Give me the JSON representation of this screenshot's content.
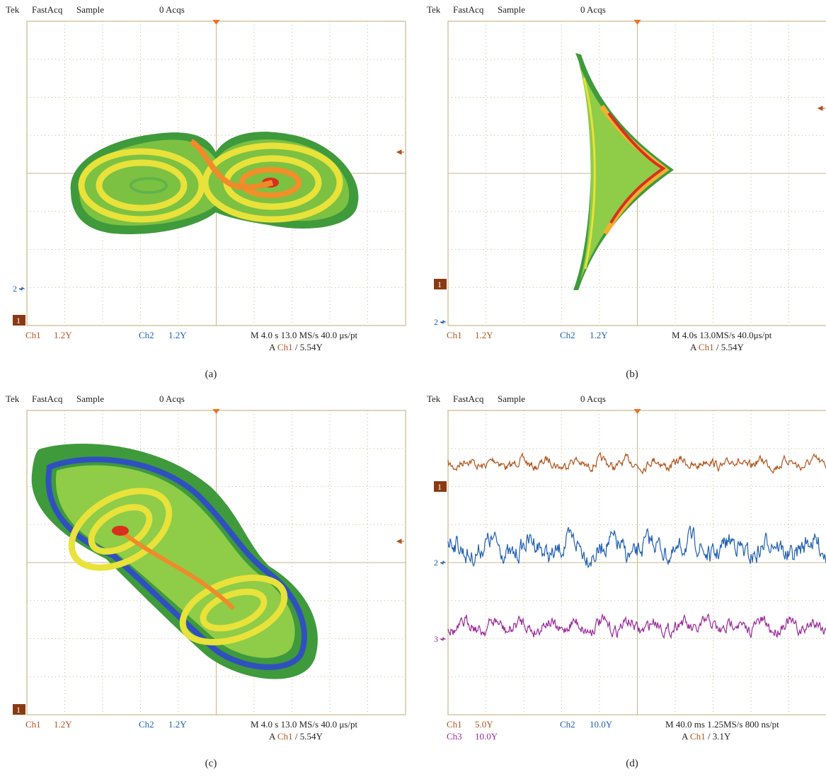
{
  "panels": [
    {
      "header": {
        "brand": "Tek",
        "mode": "FastAcq",
        "acquisition": "Sample",
        "count": "0 Acqs"
      },
      "markers": [
        "2",
        "1"
      ],
      "footer": {
        "ch1": "Ch1",
        "ch1_scale": "1.2Y",
        "ch2": "Ch2",
        "ch2_scale": "1.2Y",
        "timebase": "M 4.0 s 13.0 MS/s  40.0 μs/pt",
        "trigger_prefix": "A",
        "trigger_channel": "Ch1",
        "trigger_level": "/ 5.54Y"
      },
      "caption": "(a)"
    },
    {
      "header": {
        "brand": "Tek",
        "mode": "FastAcq",
        "acquisition": "Sample",
        "count": "0 Acqs"
      },
      "markers": [
        "1",
        "2"
      ],
      "footer": {
        "ch1": "Ch1",
        "ch1_scale": "1.2Y",
        "ch2": "Ch2",
        "ch2_scale": "1.2Y",
        "timebase": "M 4.0s 13.0MS/s    40.0μs/pt",
        "trigger_prefix": "A",
        "trigger_channel": "Ch1",
        "trigger_level": "/ 5.54Y"
      },
      "caption": "(b)"
    },
    {
      "header": {
        "brand": "Tek",
        "mode": "FastAcq",
        "acquisition": "Sample",
        "count": "0 Acqs"
      },
      "markers": [
        "1"
      ],
      "footer": {
        "ch1": "Ch1",
        "ch1_scale": "1.2Y",
        "ch2": "Ch2",
        "ch2_scale": "1.2Y",
        "timebase": "M 4.0 s 13.0 MS/s  40.0 μs/pt",
        "trigger_prefix": "A",
        "trigger_channel": "Ch1",
        "trigger_level": "/ 5.54Y"
      },
      "caption": "(c)"
    },
    {
      "header": {
        "brand": "Tek",
        "mode": "FastAcq",
        "acquisition": "Sample",
        "count": "0 Acqs"
      },
      "markers": [
        "1",
        "2",
        "3"
      ],
      "footer": {
        "ch1": "Ch1",
        "ch1_scale": "5.0Y",
        "ch2": "Ch2",
        "ch2_scale": "10.0Y",
        "ch3": "Ch3",
        "ch3_scale": "10.0Y",
        "timebase": "M 40.0 ms 1.25MS/s 800 ns/pt",
        "trigger_prefix": "A",
        "trigger_channel": "Ch1",
        "trigger_level": "/ 3.1Y"
      },
      "caption": "(d)"
    }
  ]
}
